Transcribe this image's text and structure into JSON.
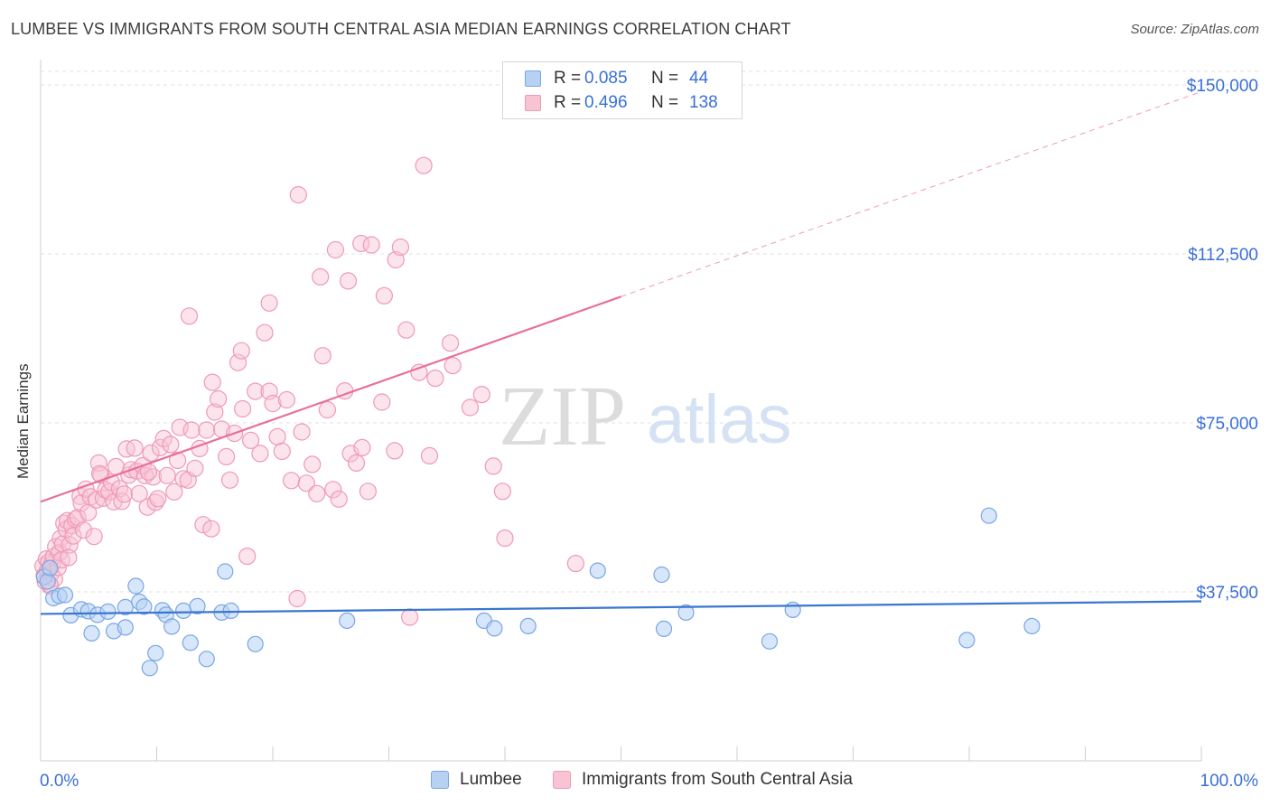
{
  "header": {
    "title": "LUMBEE VS IMMIGRANTS FROM SOUTH CENTRAL ASIA MEDIAN EARNINGS CORRELATION CHART",
    "source": "Source: ZipAtlas.com"
  },
  "watermark": {
    "zip": "ZIP",
    "atlas": "atlas"
  },
  "legend": {
    "rows": [
      {
        "r_label": "R =",
        "r_value": "0.085",
        "n_label": "N =",
        "n_value": "44",
        "fill": "#b7d1f3",
        "stroke": "#7aa6e6"
      },
      {
        "r_label": "R =",
        "r_value": "0.496",
        "n_label": "N =",
        "n_value": "138",
        "fill": "#f8c4d4",
        "stroke": "#ee9ab4"
      }
    ]
  },
  "bottom_legend": {
    "items": [
      {
        "label": "Lumbee",
        "fill": "#b7d1f3",
        "stroke": "#7aa6e6"
      },
      {
        "label": "Immigrants from South Central Asia",
        "fill": "#f8c4d4",
        "stroke": "#ee9ab4"
      }
    ]
  },
  "chart_data": {
    "type": "scatter",
    "xlabel": "",
    "ylabel": "Median Earnings",
    "xlim": [
      0,
      100
    ],
    "ylim": [
      0,
      153000
    ],
    "x_tick_labels": [
      "0.0%",
      "100.0%"
    ],
    "y_ticks": [
      37500,
      75000,
      112500,
      150000
    ],
    "y_tick_labels": [
      "$37,500",
      "$75,000",
      "$112,500",
      "$150,000"
    ],
    "grid": true,
    "colors": {
      "blue": "#3a76d0",
      "pink": "#e8709a",
      "axis_text": "#3a6fd8"
    },
    "series": [
      {
        "name": "Lumbee",
        "color": "#7aa6e6",
        "fill": "#b7d1f3",
        "points": [
          [
            0.3,
            40800
          ],
          [
            0.6,
            39800
          ],
          [
            1.1,
            36100
          ],
          [
            1.6,
            36600
          ],
          [
            2.1,
            36800
          ],
          [
            2.6,
            32300
          ],
          [
            3.5,
            33600
          ],
          [
            4.1,
            33200
          ],
          [
            4.4,
            28300
          ],
          [
            4.9,
            32400
          ],
          [
            5.8,
            33100
          ],
          [
            6.3,
            28800
          ],
          [
            7.3,
            34100
          ],
          [
            7.3,
            29600
          ],
          [
            8.2,
            38800
          ],
          [
            8.5,
            35300
          ],
          [
            8.9,
            34200
          ],
          [
            9.4,
            20600
          ],
          [
            9.9,
            23900
          ],
          [
            10.5,
            33400
          ],
          [
            10.8,
            32400
          ],
          [
            11.3,
            29800
          ],
          [
            12.3,
            33300
          ],
          [
            12.9,
            26200
          ],
          [
            13.5,
            34300
          ],
          [
            14.3,
            22600
          ],
          [
            15.6,
            32900
          ],
          [
            15.9,
            42000
          ],
          [
            16.4,
            33300
          ],
          [
            18.5,
            25900
          ],
          [
            26.4,
            31100
          ],
          [
            38.2,
            31100
          ],
          [
            39.1,
            29400
          ],
          [
            42.0,
            29900
          ],
          [
            48.0,
            42200
          ],
          [
            53.5,
            41300
          ],
          [
            53.7,
            29300
          ],
          [
            55.6,
            32900
          ],
          [
            62.8,
            26500
          ],
          [
            64.8,
            33500
          ],
          [
            79.8,
            26800
          ],
          [
            81.7,
            54400
          ],
          [
            85.4,
            29900
          ],
          [
            0.8,
            42800
          ]
        ]
      },
      {
        "name": "Immigrants from South Central Asia",
        "color": "#ee9ab4",
        "fill": "#f8c4d4",
        "points": [
          [
            0.2,
            43200
          ],
          [
            0.3,
            41100
          ],
          [
            0.4,
            39800
          ],
          [
            0.5,
            44800
          ],
          [
            0.6,
            42300
          ],
          [
            0.7,
            44100
          ],
          [
            0.8,
            38800
          ],
          [
            0.9,
            41600
          ],
          [
            1.0,
            43800
          ],
          [
            1.1,
            45300
          ],
          [
            1.2,
            40400
          ],
          [
            1.3,
            47500
          ],
          [
            1.5,
            42900
          ],
          [
            1.6,
            46200
          ],
          [
            1.7,
            49300
          ],
          [
            1.8,
            44600
          ],
          [
            1.9,
            48100
          ],
          [
            2.0,
            52700
          ],
          [
            2.2,
            51400
          ],
          [
            2.3,
            53300
          ],
          [
            2.5,
            47900
          ],
          [
            2.7,
            52200
          ],
          [
            2.8,
            49900
          ],
          [
            3.0,
            53600
          ],
          [
            3.2,
            54000
          ],
          [
            3.4,
            58700
          ],
          [
            3.5,
            57200
          ],
          [
            3.7,
            51200
          ],
          [
            3.9,
            60300
          ],
          [
            4.1,
            55100
          ],
          [
            4.3,
            58600
          ],
          [
            4.6,
            49800
          ],
          [
            4.8,
            57900
          ],
          [
            5.0,
            66100
          ],
          [
            5.2,
            63400
          ],
          [
            5.4,
            58300
          ],
          [
            5.6,
            60100
          ],
          [
            5.9,
            59700
          ],
          [
            6.1,
            61800
          ],
          [
            6.3,
            57500
          ],
          [
            6.5,
            65300
          ],
          [
            6.8,
            60400
          ],
          [
            7.0,
            57600
          ],
          [
            7.2,
            59200
          ],
          [
            7.4,
            69200
          ],
          [
            7.6,
            63400
          ],
          [
            7.8,
            64600
          ],
          [
            8.1,
            69400
          ],
          [
            8.3,
            64300
          ],
          [
            8.5,
            59300
          ],
          [
            8.8,
            65500
          ],
          [
            9.0,
            63300
          ],
          [
            9.2,
            56300
          ],
          [
            9.5,
            68300
          ],
          [
            9.7,
            63000
          ],
          [
            9.9,
            57400
          ],
          [
            10.1,
            58200
          ],
          [
            10.3,
            69500
          ],
          [
            10.6,
            71500
          ],
          [
            10.9,
            63300
          ],
          [
            11.2,
            70200
          ],
          [
            11.5,
            59700
          ],
          [
            11.8,
            66700
          ],
          [
            12.0,
            74000
          ],
          [
            12.3,
            62600
          ],
          [
            12.7,
            62300
          ],
          [
            13.0,
            73400
          ],
          [
            13.3,
            64900
          ],
          [
            13.7,
            69300
          ],
          [
            14.0,
            52400
          ],
          [
            14.3,
            73400
          ],
          [
            14.7,
            51500
          ],
          [
            15.0,
            77400
          ],
          [
            15.3,
            80300
          ],
          [
            15.6,
            73600
          ],
          [
            16.0,
            67500
          ],
          [
            16.3,
            62300
          ],
          [
            16.7,
            72700
          ],
          [
            17.0,
            88400
          ],
          [
            17.4,
            78100
          ],
          [
            17.8,
            45400
          ],
          [
            18.1,
            71100
          ],
          [
            18.5,
            82000
          ],
          [
            18.9,
            68200
          ],
          [
            19.3,
            95000
          ],
          [
            19.7,
            82000
          ],
          [
            20.0,
            79300
          ],
          [
            20.4,
            71900
          ],
          [
            20.8,
            68700
          ],
          [
            21.2,
            80100
          ],
          [
            21.6,
            62200
          ],
          [
            22.1,
            36000
          ],
          [
            22.5,
            73000
          ],
          [
            22.9,
            61600
          ],
          [
            23.4,
            65800
          ],
          [
            23.8,
            59300
          ],
          [
            24.3,
            89900
          ],
          [
            24.7,
            77900
          ],
          [
            25.2,
            60200
          ],
          [
            25.7,
            58100
          ],
          [
            26.2,
            82100
          ],
          [
            26.7,
            68200
          ],
          [
            27.2,
            66100
          ],
          [
            27.7,
            69500
          ],
          [
            28.2,
            59800
          ],
          [
            29.4,
            79600
          ],
          [
            30.5,
            68800
          ],
          [
            31.5,
            95600
          ],
          [
            31.8,
            31900
          ],
          [
            32.6,
            86200
          ],
          [
            33.5,
            67700
          ],
          [
            34.0,
            84900
          ],
          [
            35.3,
            92700
          ],
          [
            39.0,
            65400
          ],
          [
            40.0,
            49400
          ],
          [
            46.1,
            43800
          ],
          [
            2.4,
            45100
          ],
          [
            0.8,
            39100
          ],
          [
            5.1,
            63700
          ],
          [
            9.3,
            64100
          ],
          [
            12.8,
            98700
          ],
          [
            14.8,
            84000
          ],
          [
            17.3,
            91000
          ],
          [
            19.7,
            101600
          ],
          [
            22.2,
            125600
          ],
          [
            24.1,
            107400
          ],
          [
            25.4,
            113400
          ],
          [
            26.5,
            106500
          ],
          [
            27.6,
            114800
          ],
          [
            28.5,
            114500
          ],
          [
            29.6,
            103200
          ],
          [
            30.6,
            111200
          ],
          [
            31.0,
            114000
          ],
          [
            33.0,
            132100
          ],
          [
            35.5,
            87700
          ],
          [
            37.0,
            78400
          ],
          [
            38.0,
            81300
          ],
          [
            39.8,
            59800
          ]
        ]
      }
    ],
    "trendlines": [
      {
        "series": "Lumbee",
        "x": [
          0,
          100
        ],
        "y": [
          32600,
          35400
        ],
        "style": "solid"
      },
      {
        "series": "Immigrants from South Central Asia",
        "x": [
          0,
          50
        ],
        "y": [
          57500,
          103000
        ],
        "style": "solid"
      },
      {
        "series": "Immigrants from South Central Asia",
        "x": [
          50,
          100
        ],
        "y": [
          103000,
          148500
        ],
        "style": "dashed"
      }
    ]
  }
}
